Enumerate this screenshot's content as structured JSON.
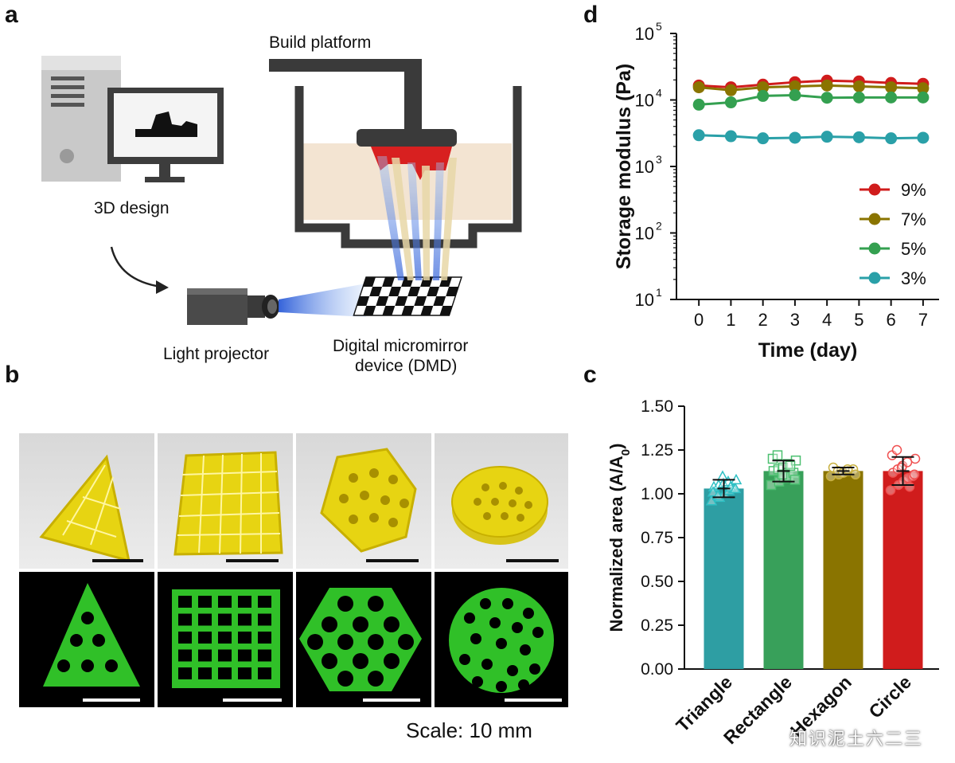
{
  "panels": {
    "a": {
      "letter": "a",
      "build_platform_label": "Build platform",
      "design_label": "3D design",
      "projector_label": "Light projector",
      "dmd_label_line1": "Digital micromirror",
      "dmd_label_line2": "device (DMD)"
    },
    "b": {
      "letter": "b",
      "scale_text": "Scale: 10 mm",
      "shapes_top": [
        "triangle",
        "rectangle",
        "hexagon",
        "circle"
      ],
      "shapes_bottom": [
        "triangle",
        "rectangle",
        "hexagon",
        "circle"
      ],
      "photo_color_top": "#f0e018",
      "photo_color_bottom": "#2ec82a"
    },
    "c": {
      "letter": "c"
    },
    "d": {
      "letter": "d"
    }
  },
  "chart_data": [
    {
      "id": "d",
      "type": "line",
      "xlabel": "Time (day)",
      "ylabel": "Storage modulus (Pa)",
      "yscale": "log",
      "ylim": [
        10,
        100000
      ],
      "y_ticks": [
        "10",
        "10",
        "10",
        "10",
        "10"
      ],
      "y_tick_exponents": [
        "1",
        "2",
        "3",
        "4",
        "5"
      ],
      "x": [
        0,
        1,
        2,
        3,
        4,
        5,
        6,
        7
      ],
      "legend_position": "right-middle",
      "series": [
        {
          "name": "9%",
          "color": "#d01c1c",
          "values": [
            16500,
            15500,
            17000,
            18500,
            19500,
            19000,
            18000,
            17500
          ]
        },
        {
          "name": "7%",
          "color": "#8a7400",
          "values": [
            15500,
            14000,
            15500,
            16000,
            16500,
            16000,
            15500,
            15000
          ]
        },
        {
          "name": "5%",
          "color": "#34a050",
          "values": [
            8500,
            9200,
            11500,
            11800,
            10800,
            10900,
            10900,
            10900
          ]
        },
        {
          "name": "3%",
          "color": "#2aa0a8",
          "values": [
            2950,
            2850,
            2650,
            2700,
            2800,
            2750,
            2650,
            2700
          ]
        }
      ]
    },
    {
      "id": "c",
      "type": "bar",
      "ylabel": "Normalized area (A/A0)",
      "ylabel_main": "Normalized area (A/A",
      "ylabel_sub": "0",
      "ylabel_close": ")",
      "ylim": [
        0,
        1.5
      ],
      "y_ticks": [
        "0.00",
        "0.25",
        "0.50",
        "0.75",
        "1.00",
        "1.25",
        "1.50"
      ],
      "categories": [
        "Triangle",
        "Rectangle",
        "Hexagon",
        "Circle"
      ],
      "values": [
        1.03,
        1.13,
        1.13,
        1.13
      ],
      "errors": [
        0.05,
        0.06,
        0.02,
        0.08
      ],
      "bar_colors": [
        "#2e9ea3",
        "#38a05a",
        "#8a7400",
        "#d01c1c"
      ],
      "marker_colors": [
        "#2ec0c4",
        "#4cc070",
        "#c8b040",
        "#f05050"
      ],
      "marker_shapes": [
        "triangle",
        "square",
        "circle",
        "circle"
      ],
      "points": [
        [
          0.96,
          0.98,
          1.0,
          1.02,
          1.03,
          1.04,
          1.05,
          1.06,
          1.07,
          1.08,
          1.01,
          0.99,
          1.1,
          1.04,
          1.03
        ],
        [
          1.05,
          1.07,
          1.09,
          1.1,
          1.12,
          1.13,
          1.14,
          1.15,
          1.17,
          1.19,
          1.2,
          1.22,
          1.11,
          1.16,
          1.08
        ],
        [
          1.1,
          1.11,
          1.12,
          1.13,
          1.14,
          1.15,
          1.13,
          1.12,
          1.14,
          1.11
        ],
        [
          1.02,
          1.05,
          1.07,
          1.09,
          1.1,
          1.12,
          1.14,
          1.16,
          1.18,
          1.2,
          1.22,
          1.25,
          1.15,
          1.04,
          1.11
        ]
      ]
    }
  ],
  "watermark": "知识泥土六二三"
}
